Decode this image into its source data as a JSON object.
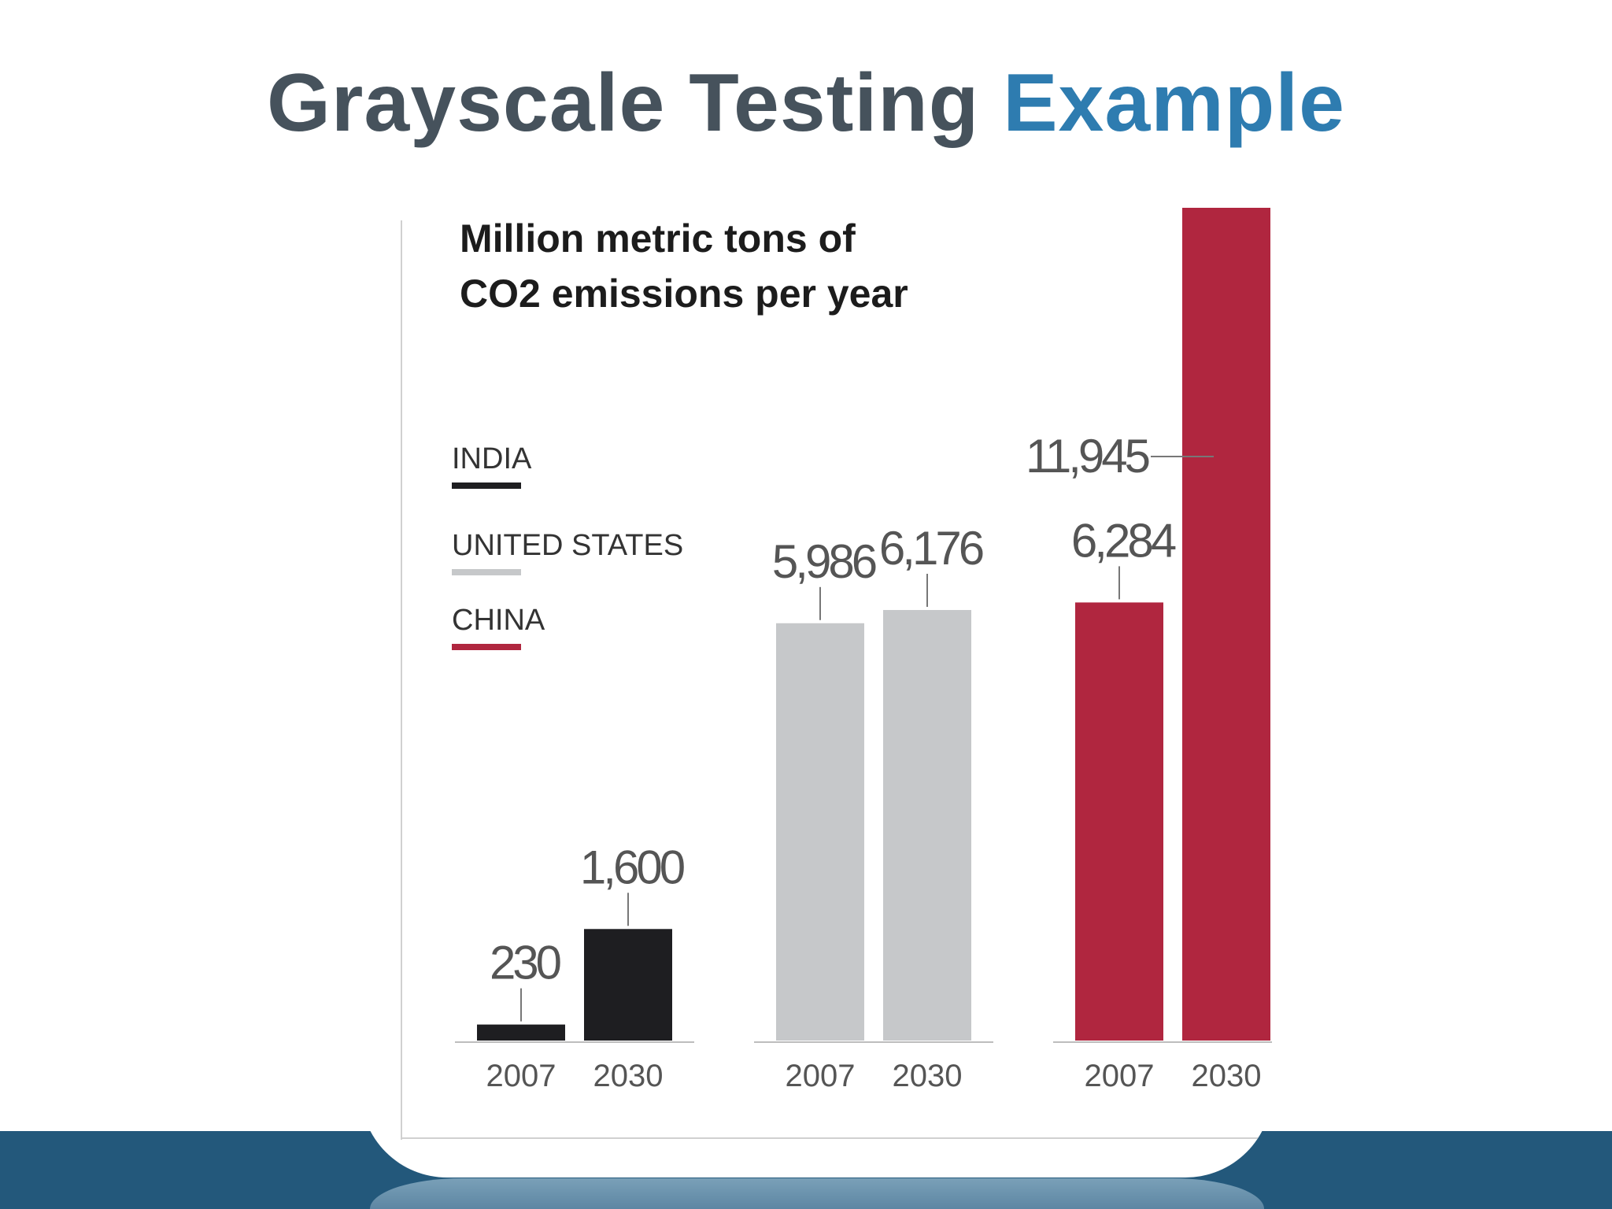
{
  "slide": {
    "title_part1": "Grayscale Testing ",
    "title_part2": "Example"
  },
  "colors": {
    "title_dark": "#46525c",
    "title_accent": "#2e7cb0",
    "footer_band": "#23587b",
    "india": "#1e1e21",
    "united_states": "#c6c8ca",
    "china": "#b0263f"
  },
  "chart_data": {
    "type": "bar",
    "title_lines": [
      "Million metric tons of",
      "CO2 emissions per year"
    ],
    "categories": [
      "2007",
      "2030"
    ],
    "series": [
      {
        "name": "INDIA",
        "values": [
          230,
          1600
        ],
        "color": "#1e1e21"
      },
      {
        "name": "UNITED STATES",
        "values": [
          5986,
          6176
        ],
        "color": "#c6c8ca"
      },
      {
        "name": "CHINA",
        "values": [
          6284,
          11945
        ],
        "color": "#b0263f"
      }
    ],
    "value_labels": [
      [
        "230",
        "1,600"
      ],
      [
        "5,986",
        "6,176"
      ],
      [
        "6,284",
        "11,945"
      ]
    ],
    "legend_position": "left",
    "grid": false,
    "ylim": [
      0,
      11945
    ]
  }
}
